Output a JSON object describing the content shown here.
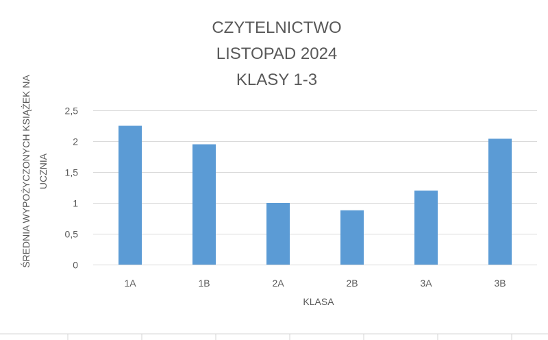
{
  "chart_data": {
    "type": "bar",
    "title": [
      "CZYTELNICTWO",
      "LISTOPAD 2024",
      "KLASY 1-3"
    ],
    "categories": [
      "1A",
      "1B",
      "2A",
      "2B",
      "3A",
      "3B"
    ],
    "values": [
      2.25,
      1.95,
      1.0,
      0.88,
      1.2,
      2.04
    ],
    "xlabel": "KLASA",
    "ylabel": [
      "ŚREDNIA WYPOŻYCZONYCH KSIĄŻEK NA",
      "UCZNIA"
    ],
    "ylim": [
      0,
      2.5
    ],
    "yticks": [
      0,
      0.5,
      1,
      1.5,
      2,
      2.5
    ],
    "ytick_labels": [
      "0",
      "0,5",
      "1",
      "1,5",
      "2",
      "2,5"
    ],
    "grid": true,
    "bar_color": "#5b9bd5"
  }
}
